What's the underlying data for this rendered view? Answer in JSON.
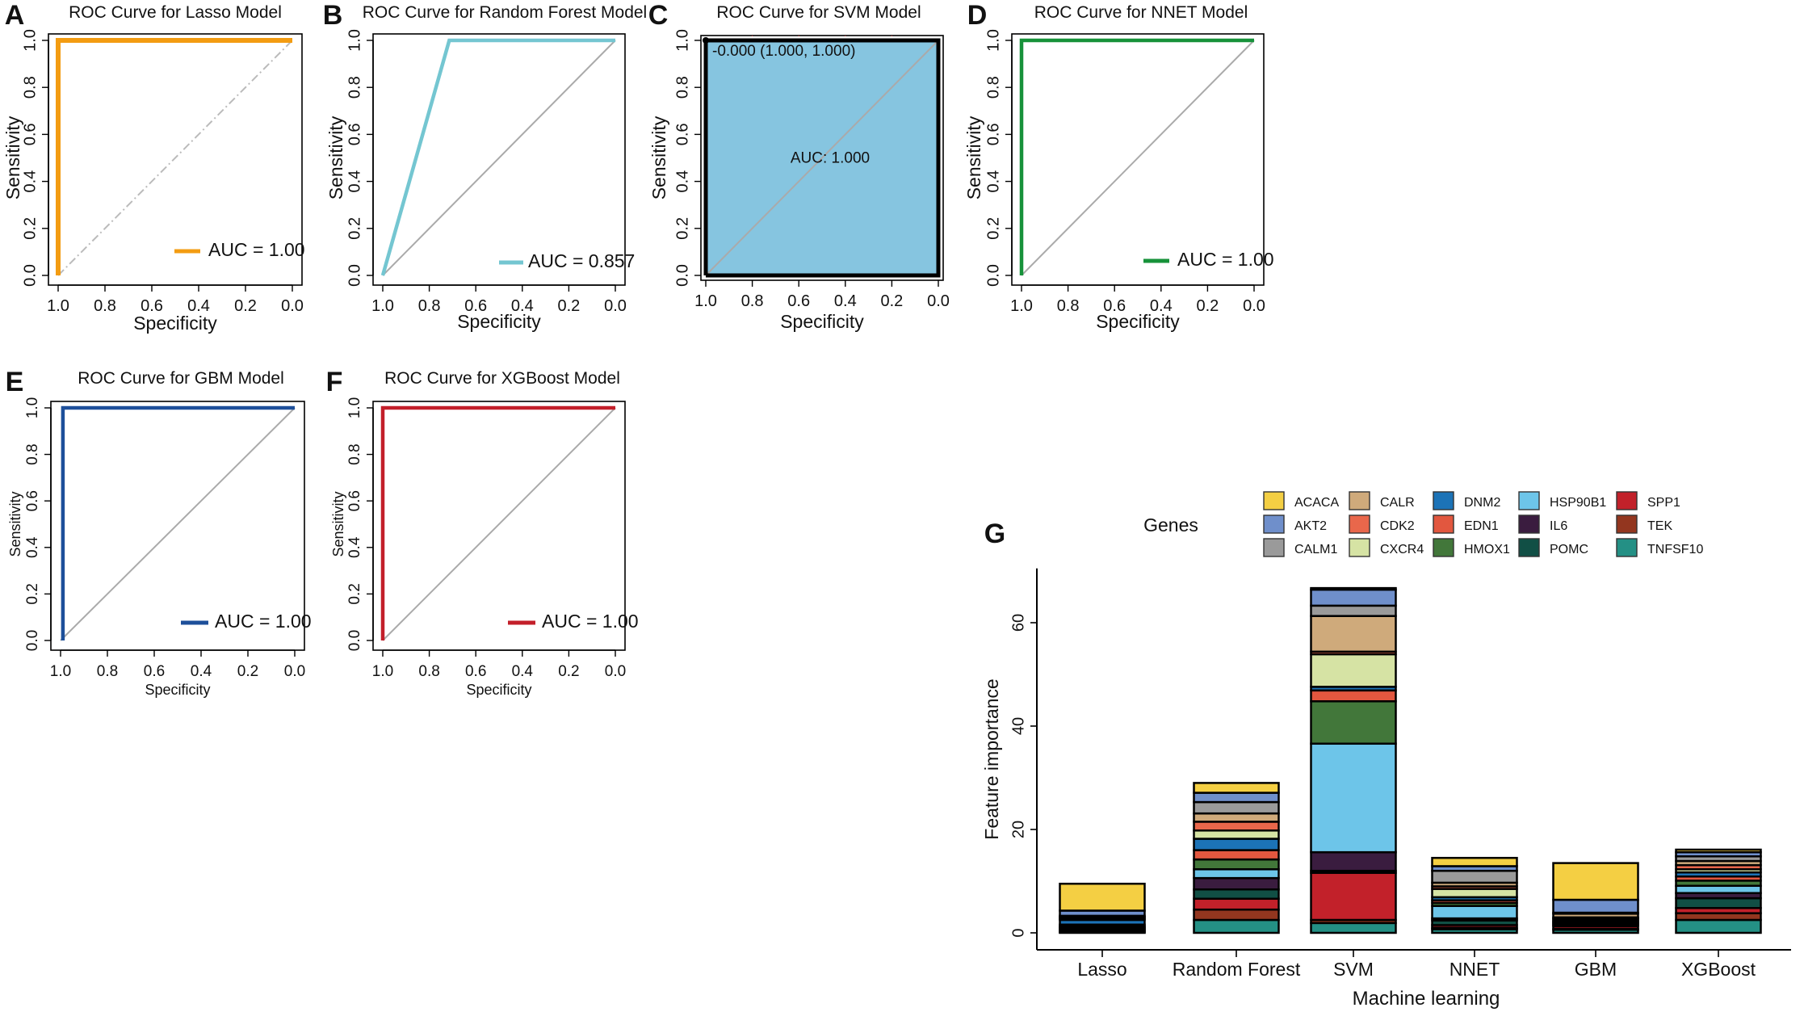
{
  "colors": {
    "lasso": "#F39C12",
    "rf": "#74C6D1",
    "svm_fill": "#86C5E0",
    "nnet": "#17923A",
    "gbm": "#1D4F9A",
    "xgb": "#C31F2A",
    "diag": "#AAAAAA"
  },
  "chart_data": [
    {
      "type": "line",
      "panel": "A",
      "title": "ROC Curve for Lasso Model",
      "xlabel": "Specificity",
      "ylabel": "Sensitivity",
      "xlim": [
        1.0,
        0.0
      ],
      "ylim": [
        0.0,
        1.0
      ],
      "xticks": [
        "1.0",
        "0.8",
        "0.6",
        "0.4",
        "0.2",
        "0.0"
      ],
      "yticks": [
        "0.0",
        "0.2",
        "0.4",
        "0.6",
        "0.8",
        "1.0"
      ],
      "x": [
        1.0,
        1.0,
        0.0
      ],
      "y": [
        0.0,
        1.0,
        1.0
      ],
      "legend": "AUC = 1.00",
      "color_key": "lasso"
    },
    {
      "type": "line",
      "panel": "B",
      "title": "ROC Curve for Random Forest Model",
      "xlabel": "Specificity",
      "ylabel": "Sensitivity",
      "xlim": [
        1.0,
        0.0
      ],
      "ylim": [
        0.0,
        1.0
      ],
      "xticks": [
        "1.0",
        "0.8",
        "0.6",
        "0.4",
        "0.2",
        "0.0"
      ],
      "yticks": [
        "0.0",
        "0.2",
        "0.4",
        "0.6",
        "0.8",
        "1.0"
      ],
      "x": [
        1.0,
        0.714,
        0.0
      ],
      "y": [
        0.0,
        1.0,
        1.0
      ],
      "legend": "AUC = 0.857",
      "color_key": "rf"
    },
    {
      "type": "area",
      "panel": "C",
      "title": "ROC Curve for SVM Model",
      "xlabel": "Specificity",
      "ylabel": "Sensitivity",
      "xlim": [
        1.0,
        0.0
      ],
      "ylim": [
        0.0,
        1.0
      ],
      "xticks": [
        "1.0",
        "0.8",
        "0.6",
        "0.4",
        "0.2",
        "0.0"
      ],
      "yticks": [
        "0.0",
        "0.2",
        "0.4",
        "0.6",
        "0.8",
        "1.0"
      ],
      "x": [
        1.0,
        1.0,
        0.0
      ],
      "y": [
        0.0,
        1.0,
        1.0
      ],
      "annotation": "-0.000 (1.000, 1.000)",
      "auc_label": "AUC: 1.000",
      "color_key": "svm_fill"
    },
    {
      "type": "line",
      "panel": "D",
      "title": "ROC Curve for NNET Model",
      "xlabel": "Specificity",
      "ylabel": "Sensitivity",
      "xlim": [
        1.0,
        0.0
      ],
      "ylim": [
        0.0,
        1.0
      ],
      "xticks": [
        "1.0",
        "0.8",
        "0.6",
        "0.4",
        "0.2",
        "0.0"
      ],
      "yticks": [
        "0.0",
        "0.2",
        "0.4",
        "0.6",
        "0.8",
        "1.0"
      ],
      "x": [
        1.0,
        1.0,
        0.0
      ],
      "y": [
        0.0,
        1.0,
        1.0
      ],
      "legend": "AUC = 1.00",
      "color_key": "nnet"
    },
    {
      "type": "line",
      "panel": "E",
      "title": "ROC Curve for GBM Model",
      "xlabel": "Specificity",
      "ylabel": "Sensitivity",
      "xlim": [
        1.0,
        0.0
      ],
      "ylim": [
        0.0,
        1.0
      ],
      "xticks": [
        "1.0",
        "0.8",
        "0.6",
        "0.4",
        "0.2",
        "0.0"
      ],
      "yticks": [
        "0.0",
        "0.2",
        "0.4",
        "0.6",
        "0.8",
        "1.0"
      ],
      "x": [
        0.99,
        0.99,
        0.0
      ],
      "y": [
        0.0,
        1.0,
        1.0
      ],
      "legend": "AUC = 1.00",
      "color_key": "gbm"
    },
    {
      "type": "line",
      "panel": "F",
      "title": "ROC Curve for XGBoost Model",
      "xlabel": "Specificity",
      "ylabel": "Sensitivity",
      "xlim": [
        1.0,
        0.0
      ],
      "ylim": [
        0.0,
        1.0
      ],
      "xticks": [
        "1.0",
        "0.8",
        "0.6",
        "0.4",
        "0.2",
        "0.0"
      ],
      "yticks": [
        "0.0",
        "0.2",
        "0.4",
        "0.6",
        "0.8",
        "1.0"
      ],
      "x": [
        1.0,
        1.0,
        0.0
      ],
      "y": [
        0.0,
        1.0,
        1.0
      ],
      "legend": "AUC = 1.00",
      "color_key": "xgb"
    },
    {
      "type": "bar",
      "stacked": true,
      "panel": "G",
      "xlabel": "Machine learning",
      "ylabel": "Feature importance",
      "ylim": [
        0,
        70
      ],
      "yticks": [
        0,
        20,
        40,
        60
      ],
      "legend_title": "Genes",
      "categories": [
        "Lasso",
        "Random Forest",
        "SVM",
        "NNET",
        "GBM",
        "XGBoost"
      ],
      "genes": [
        {
          "name": "ACACA",
          "color": "#F4CF43"
        },
        {
          "name": "AKT2",
          "color": "#6F8FCB"
        },
        {
          "name": "CALM1",
          "color": "#9A9A9A"
        },
        {
          "name": "CALR",
          "color": "#CFAA7B"
        },
        {
          "name": "CDK2",
          "color": "#E9674B"
        },
        {
          "name": "CXCR4",
          "color": "#D6E3A4"
        },
        {
          "name": "DNM2",
          "color": "#1C73B7"
        },
        {
          "name": "EDN1",
          "color": "#E2573F"
        },
        {
          "name": "HMOX1",
          "color": "#42773A"
        },
        {
          "name": "HSP90B1",
          "color": "#6DC5E9"
        },
        {
          "name": "IL6",
          "color": "#3A1C3F"
        },
        {
          "name": "POMC",
          "color": "#114F45"
        },
        {
          "name": "SPP1",
          "color": "#C2212A"
        },
        {
          "name": "TEK",
          "color": "#93361F"
        },
        {
          "name": "TNFSF10",
          "color": "#249085"
        }
      ],
      "series": [
        {
          "name": "Lasso",
          "values": {
            "ACACA": 5.2,
            "AKT2": 1.0,
            "CALM1": 0.2,
            "CALR": 0.2,
            "CDK2": 0.2,
            "CXCR4": 0.2,
            "DNM2": 0.9,
            "EDN1": 0.3,
            "HMOX1": 0.2,
            "HSP90B1": 0.2,
            "IL6": 0.2,
            "POMC": 0.2,
            "SPP1": 0.2,
            "TEK": 0.2,
            "TNFSF10": 0.1
          }
        },
        {
          "name": "Random Forest",
          "values": {
            "ACACA": 1.9,
            "AKT2": 1.8,
            "CALM1": 2.2,
            "CALR": 1.6,
            "CDK2": 1.7,
            "CXCR4": 1.6,
            "DNM2": 2.2,
            "EDN1": 1.8,
            "HMOX1": 1.9,
            "HSP90B1": 1.7,
            "IL6": 2.2,
            "POMC": 1.8,
            "SPP1": 2.1,
            "TEK": 2.0,
            "TNFSF10": 2.5
          }
        },
        {
          "name": "SVM",
          "values": {
            "ACACA": 0.3,
            "AKT2": 3.1,
            "CALM1": 2.0,
            "CALR": 6.9,
            "CDK2": 0.5,
            "CXCR4": 6.3,
            "DNM2": 0.7,
            "EDN1": 2.1,
            "HMOX1": 8.2,
            "HSP90B1": 21.0,
            "IL6": 3.6,
            "POMC": 0.4,
            "SPP1": 9.1,
            "TEK": 0.6,
            "TNFSF10": 1.9
          }
        },
        {
          "name": "NNET",
          "values": {
            "ACACA": 1.6,
            "AKT2": 0.9,
            "CALM1": 2.3,
            "CALR": 0.7,
            "CDK2": 0.5,
            "CXCR4": 1.6,
            "DNM2": 0.6,
            "EDN1": 0.5,
            "HMOX1": 0.6,
            "HSP90B1": 2.4,
            "IL6": 0.4,
            "POMC": 0.9,
            "SPP1": 0.5,
            "TEK": 0.3,
            "TNFSF10": 0.7
          }
        },
        {
          "name": "GBM",
          "values": {
            "ACACA": 7.1,
            "AKT2": 2.5,
            "CALM1": 0.2,
            "CALR": 0.7,
            "CDK2": 0.2,
            "CXCR4": 0.2,
            "DNM2": 0.3,
            "EDN1": 0.2,
            "HMOX1": 0.2,
            "HSP90B1": 0.2,
            "IL6": 0.2,
            "POMC": 0.2,
            "SPP1": 0.5,
            "TEK": 0.2,
            "TNFSF10": 0.6
          }
        },
        {
          "name": "XGBoost",
          "values": {
            "ACACA": 0.5,
            "AKT2": 0.8,
            "CALM1": 0.9,
            "CALR": 0.8,
            "CDK2": 0.8,
            "CXCR4": 0.6,
            "DNM2": 0.8,
            "EDN1": 0.8,
            "HMOX1": 1.0,
            "HSP90B1": 1.4,
            "IL6": 1.0,
            "POMC": 1.9,
            "SPP1": 1.0,
            "TEK": 1.3,
            "TNFSF10": 2.5
          }
        }
      ]
    }
  ]
}
